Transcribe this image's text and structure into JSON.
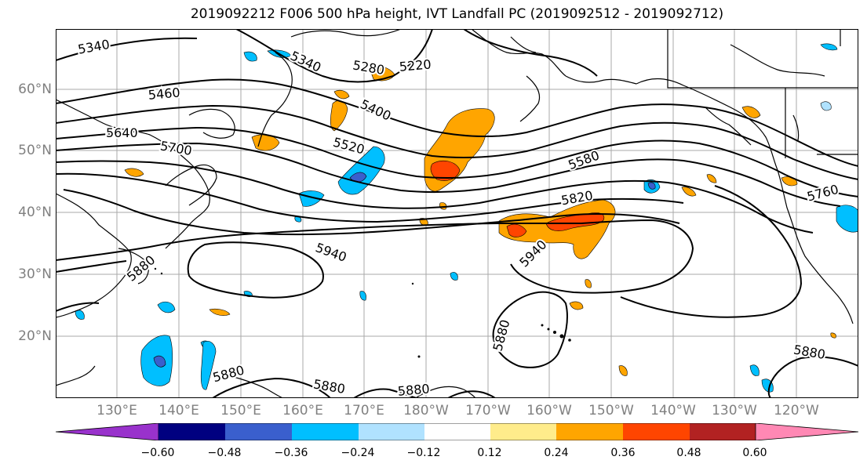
{
  "title": "2019092212 F006 500 hPa height, IVT Landfall PC (2019092512 - 2019092712)",
  "map": {
    "region": "North Pacific",
    "lat_labels": [
      "60°N",
      "50°N",
      "40°N",
      "30°N",
      "20°N"
    ],
    "lon_labels": [
      "130°E",
      "140°E",
      "150°E",
      "160°E",
      "170°E",
      "180°W",
      "170°W",
      "160°W",
      "150°W",
      "140°W",
      "130°W",
      "120°W"
    ],
    "contour_labels": [
      "5340",
      "5340",
      "5280",
      "5220",
      "5460",
      "5400",
      "5640",
      "5520",
      "5700",
      "5580",
      "5820",
      "5760",
      "5880",
      "5940",
      "5940",
      "5880",
      "5880",
      "5880",
      "5880",
      "5880"
    ],
    "contour_color": "#000000",
    "coastline_color": "#000000"
  },
  "colorbar": {
    "colors": [
      "#9932cc",
      "#000080",
      "#3a5fcd",
      "#00bfff",
      "#b0e2ff",
      "#ffffff",
      "#ffec8b",
      "#ffa500",
      "#ff4500",
      "#b22222",
      "#ff88b4"
    ],
    "ticks": [
      "−0.60",
      "−0.48",
      "−0.36",
      "−0.24",
      "−0.12",
      "0.12",
      "0.24",
      "0.36",
      "0.48",
      "0.60"
    ]
  }
}
